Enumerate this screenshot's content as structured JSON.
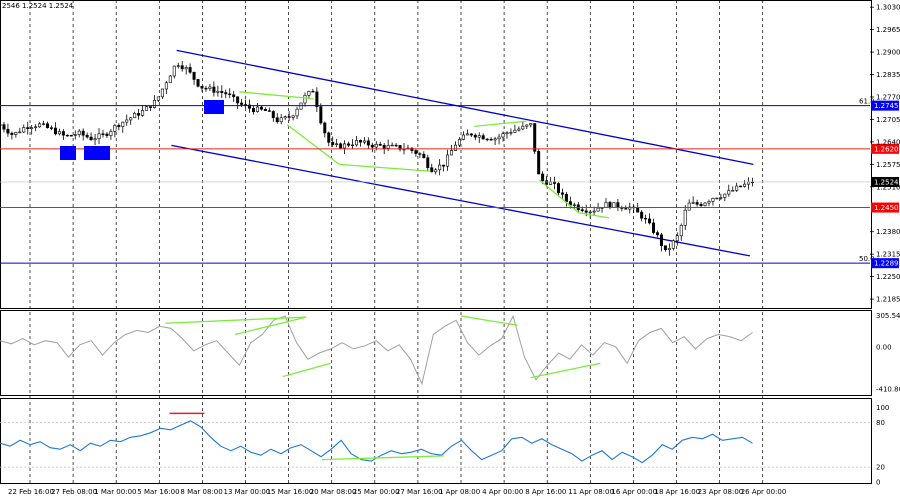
{
  "header": {
    "ohlc_text": "2546 1.2524 1.2524"
  },
  "colors": {
    "channel": "#0000cc",
    "fib_line": "#0000cc",
    "resistance_support": "#e32020",
    "divergence": "#7cec3c",
    "cci_line": "#a0a0a0",
    "rsi_line": "#1e78d8",
    "price_tag_red": "#ff0000",
    "price_tag_blue": "#0000ff"
  },
  "chart_data": {
    "type": "candlestick",
    "symbol": "GBP/USD 4H",
    "x_ticks": [
      "22 Feb 16:00",
      "27 Feb 08:00",
      "1 Mar 00:00",
      "5 Mar 16:00",
      "8 Mar 08:00",
      "13 Mar 00:00",
      "15 Mar 16:00",
      "20 Mar 08:00",
      "25 Mar 00:00",
      "27 Mar 16:00",
      "1 Apr 08:00",
      "4 Apr 00:00",
      "8 Apr 16:00",
      "11 Apr 08:00",
      "16 Apr 00:00",
      "18 Apr 16:00",
      "23 Apr 08:00",
      "26 Apr 00:00"
    ],
    "price_axis": {
      "ticks": [
        "1.3030",
        "1.2965",
        "1.2900",
        "1.2835",
        "1.2770",
        "1.2705",
        "1.2640",
        "1.2575",
        "1.2510",
        "1.2380",
        "1.2315",
        "1.2250",
        "1.2185"
      ],
      "range": [
        1.2165,
        1.3045
      ]
    },
    "levels": [
      {
        "name": "fib-61.8",
        "label": "61.8",
        "price": 1.2745,
        "tag": "1.2745",
        "color": "blue"
      },
      {
        "name": "resistance",
        "price": 1.262,
        "tag": "1.2620",
        "color": "red"
      },
      {
        "name": "current-price",
        "price": 1.2524,
        "tag": "1.2524",
        "color": "black"
      },
      {
        "name": "support",
        "price": 1.245,
        "tag": "1.2450",
        "color": "red"
      },
      {
        "name": "fib-50.0",
        "label": "50.0",
        "price": 1.2289,
        "tag": "1.2289",
        "color": "blue"
      }
    ],
    "channel": {
      "upper": [
        [
          0.203,
          1.2905
        ],
        [
          0.866,
          1.2575
        ]
      ],
      "lower": [
        [
          0.197,
          1.263
        ],
        [
          0.862,
          1.231
        ]
      ]
    },
    "close_path": [
      [
        0.0,
        1.269
      ],
      [
        0.015,
        1.266
      ],
      [
        0.03,
        1.2685
      ],
      [
        0.045,
        1.269
      ],
      [
        0.06,
        1.2675
      ],
      [
        0.075,
        1.2655
      ],
      [
        0.09,
        1.2665
      ],
      [
        0.105,
        1.265
      ],
      [
        0.12,
        1.266
      ],
      [
        0.135,
        1.269
      ],
      [
        0.15,
        1.271
      ],
      [
        0.165,
        1.273
      ],
      [
        0.18,
        1.276
      ],
      [
        0.19,
        1.281
      ],
      [
        0.203,
        1.287
      ],
      [
        0.215,
        1.285
      ],
      [
        0.23,
        1.28
      ],
      [
        0.245,
        1.279
      ],
      [
        0.26,
        1.278
      ],
      [
        0.275,
        1.275
      ],
      [
        0.29,
        1.2735
      ],
      [
        0.305,
        1.273
      ],
      [
        0.32,
        1.27
      ],
      [
        0.335,
        1.2715
      ],
      [
        0.35,
        1.277
      ],
      [
        0.36,
        1.279
      ],
      [
        0.37,
        1.269
      ],
      [
        0.38,
        1.2625
      ],
      [
        0.395,
        1.263
      ],
      [
        0.41,
        1.264
      ],
      [
        0.43,
        1.263
      ],
      [
        0.45,
        1.2625
      ],
      [
        0.47,
        1.262
      ],
      [
        0.485,
        1.26
      ],
      [
        0.495,
        1.256
      ],
      [
        0.51,
        1.2575
      ],
      [
        0.525,
        1.264
      ],
      [
        0.54,
        1.2665
      ],
      [
        0.555,
        1.2655
      ],
      [
        0.57,
        1.265
      ],
      [
        0.585,
        1.267
      ],
      [
        0.6,
        1.268
      ],
      [
        0.61,
        1.269
      ],
      [
        0.62,
        1.253
      ],
      [
        0.635,
        1.252
      ],
      [
        0.65,
        1.247
      ],
      [
        0.665,
        1.245
      ],
      [
        0.68,
        1.244
      ],
      [
        0.695,
        1.246
      ],
      [
        0.71,
        1.2455
      ],
      [
        0.725,
        1.245
      ],
      [
        0.74,
        1.242
      ],
      [
        0.755,
        1.237
      ],
      [
        0.765,
        1.232
      ],
      [
        0.78,
        1.237
      ],
      [
        0.79,
        1.246
      ],
      [
        0.805,
        1.246
      ],
      [
        0.82,
        1.248
      ],
      [
        0.835,
        1.249
      ],
      [
        0.85,
        1.251
      ],
      [
        0.865,
        1.2524
      ]
    ],
    "price_divergence_lines": [
      [
        [
          0.275,
          1.2785
        ],
        [
          0.36,
          1.2765
        ]
      ],
      [
        [
          0.33,
          1.269
        ],
        [
          0.39,
          1.2575
        ]
      ],
      [
        [
          0.39,
          1.2575
        ],
        [
          0.495,
          1.2555
        ]
      ],
      [
        [
          0.545,
          1.2685
        ],
        [
          0.605,
          1.27
        ]
      ],
      [
        [
          0.62,
          1.253
        ],
        [
          0.665,
          1.2435
        ]
      ],
      [
        [
          0.665,
          1.2435
        ],
        [
          0.7,
          1.242
        ]
      ]
    ],
    "cci": {
      "axis_ticks": [
        "305.5401",
        "0.00",
        "-410.803"
      ],
      "range": [
        -440,
        320
      ],
      "values": [
        60,
        30,
        80,
        20,
        60,
        40,
        -100,
        20,
        60,
        -80,
        40,
        120,
        160,
        140,
        200,
        180,
        80,
        -40,
        20,
        60,
        -60,
        -180,
        40,
        120,
        260,
        300,
        40,
        -120,
        -60,
        -20,
        40,
        -20,
        10,
        60,
        -40,
        20,
        -120,
        -360,
        120,
        200,
        260,
        40,
        -80,
        10,
        80,
        300,
        -100,
        -320,
        -180,
        -60,
        -120,
        20,
        -80,
        40,
        0,
        -160,
        60,
        140,
        180,
        40,
        100,
        -20,
        80,
        120,
        100,
        60,
        140
      ],
      "divergence_lines": [
        [
          [
            0.19,
            230
          ],
          [
            0.352,
            290
          ]
        ],
        [
          [
            0.27,
            120
          ],
          [
            0.352,
            290
          ]
        ],
        [
          [
            0.325,
            -290
          ],
          [
            0.38,
            -160
          ]
        ],
        [
          [
            0.53,
            300
          ],
          [
            0.595,
            210
          ]
        ],
        [
          [
            0.61,
            -300
          ],
          [
            0.69,
            -160
          ]
        ]
      ]
    },
    "rsi": {
      "axis_ticks": [
        "100",
        "80",
        "20",
        "0"
      ],
      "range": [
        0,
        100
      ],
      "values": [
        52,
        48,
        56,
        50,
        54,
        46,
        44,
        50,
        42,
        52,
        48,
        56,
        54,
        60,
        62,
        66,
        72,
        70,
        76,
        82,
        74,
        60,
        48,
        42,
        48,
        40,
        36,
        44,
        38,
        46,
        50,
        42,
        34,
        44,
        56,
        38,
        30,
        28,
        36,
        42,
        38,
        40,
        44,
        38,
        36,
        48,
        56,
        42,
        30,
        36,
        42,
        58,
        60,
        52,
        58,
        50,
        44,
        38,
        28,
        36,
        42,
        30,
        40,
        34,
        26,
        36,
        50,
        44,
        56,
        60,
        58,
        64,
        56,
        58,
        60,
        52
      ],
      "overbought_line": [
        [
          0.195,
          92
        ],
        [
          0.235,
          92
        ]
      ],
      "divergence_lines": [
        [
          [
            0.37,
            30
          ],
          [
            0.51,
            35
          ]
        ]
      ]
    }
  }
}
